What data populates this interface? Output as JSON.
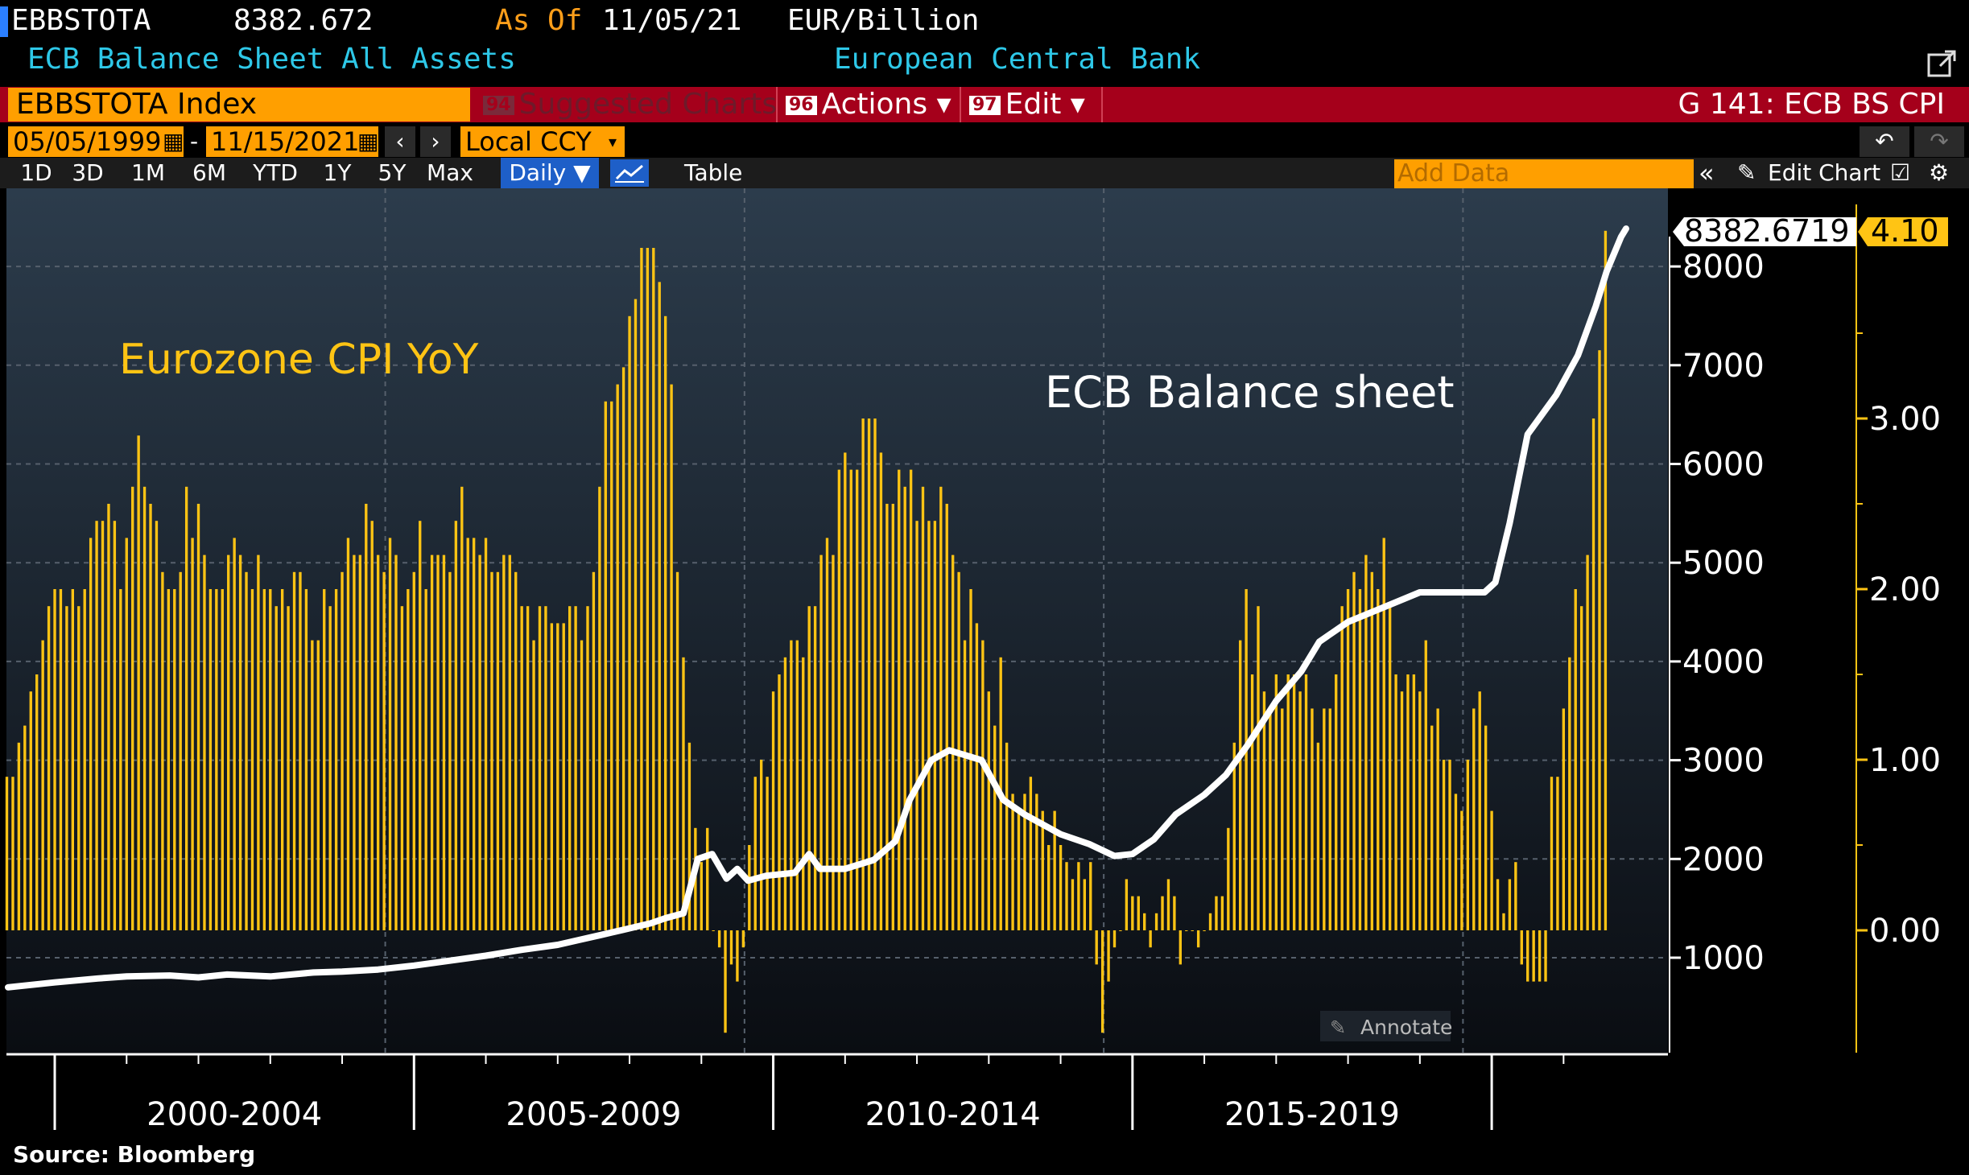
{
  "header": {
    "ticker": "EBBSTOTA",
    "last_value": "8382.672",
    "as_of_label": "As Of",
    "as_of_date": "11/05/21",
    "units": "EUR/Billion",
    "description": "ECB Balance Sheet All Assets",
    "source_name": "European Central Bank"
  },
  "command_bar": {
    "security": "EBBSTOTA Index",
    "suggested_num": "94",
    "suggested_label": "Suggested Charts",
    "actions_num": "96",
    "actions_label": "Actions ▾",
    "edit_num": "97",
    "edit_label": "Edit ▾",
    "chart_id": "G 141: ECB BS CPI"
  },
  "date_bar": {
    "start_date": "05/05/1999",
    "dash": "-",
    "end_date": "11/15/2021",
    "currency": "Local CCY"
  },
  "toolbar": {
    "ranges": [
      "1D",
      "3D",
      "1M",
      "6M",
      "YTD",
      "1Y",
      "5Y",
      "Max"
    ],
    "frequency": "Daily ▼",
    "table_label": "Table",
    "add_data_placeholder": "Add Data",
    "edit_chart_label": "Edit Chart"
  },
  "colors": {
    "bars": "#ffc414",
    "line": "#ffffff",
    "background_top": "#2c3c4c",
    "background_bottom": "#0a0d12",
    "amber": "#ff9f00",
    "red_bar": "#a5001b"
  },
  "chart_data": {
    "type": "bar",
    "x_range": [
      1999.35,
      2021.87
    ],
    "x_tick_labels": [
      "2000-2004",
      "2005-2009",
      "2010-2014",
      "2015-2019"
    ],
    "annotations": {
      "cpi_label": "Eurozone CPI YoY",
      "bs_label": "ECB Balance sheet",
      "annotate_button": "Annotate"
    },
    "footer": "Source: Bloomberg",
    "left_axis": {
      "ticks": [
        1000,
        2000,
        3000,
        4000,
        5000,
        6000,
        7000,
        8000
      ],
      "last_value_label": "8382.6719"
    },
    "right_axis": {
      "ticks": [
        0.0,
        1.0,
        2.0,
        3.0
      ],
      "last_value_label": "4.10"
    },
    "series": [
      {
        "name": "Eurozone CPI YoY",
        "type": "bar",
        "axis": "right",
        "start": "1999-05",
        "frequency": "monthly",
        "values": [
          0.9,
          0.9,
          1.1,
          1.2,
          1.4,
          1.5,
          1.7,
          1.9,
          2.0,
          2.0,
          1.9,
          2.0,
          1.9,
          2.0,
          2.3,
          2.4,
          2.4,
          2.5,
          2.4,
          2.0,
          2.3,
          2.6,
          2.9,
          2.6,
          2.5,
          2.4,
          2.1,
          2.0,
          2.0,
          2.1,
          2.6,
          2.3,
          2.5,
          2.2,
          2.0,
          2.0,
          2.0,
          2.2,
          2.3,
          2.2,
          2.1,
          2.0,
          2.2,
          2.0,
          2.0,
          1.9,
          2.0,
          1.9,
          2.1,
          2.1,
          2.0,
          1.7,
          1.7,
          2.0,
          1.9,
          2.0,
          2.1,
          2.3,
          2.2,
          2.2,
          2.5,
          2.4,
          2.2,
          2.1,
          2.3,
          2.2,
          1.9,
          2.0,
          2.1,
          2.4,
          2.0,
          2.2,
          2.2,
          2.2,
          2.1,
          2.4,
          2.6,
          2.3,
          2.3,
          2.2,
          2.3,
          2.1,
          2.1,
          2.2,
          2.2,
          2.1,
          1.9,
          1.9,
          1.7,
          1.9,
          1.9,
          1.8,
          1.8,
          1.8,
          1.9,
          1.9,
          1.7,
          1.9,
          2.1,
          2.6,
          3.1,
          3.1,
          3.2,
          3.3,
          3.6,
          3.7,
          4.0,
          4.0,
          4.0,
          3.8,
          3.6,
          3.2,
          2.1,
          1.6,
          1.1,
          0.6,
          0.4,
          0.6,
          0.0,
          -0.1,
          -0.6,
          -0.2,
          -0.3,
          -0.1,
          0.5,
          0.9,
          1.0,
          0.9,
          1.4,
          1.5,
          1.6,
          1.7,
          1.7,
          1.6,
          1.9,
          1.9,
          2.2,
          2.3,
          2.2,
          2.7,
          2.8,
          2.7,
          2.7,
          3.0,
          3.0,
          3.0,
          2.8,
          2.5,
          2.5,
          2.7,
          2.6,
          2.7,
          2.4,
          2.6,
          2.4,
          2.4,
          2.6,
          2.5,
          2.2,
          2.1,
          1.7,
          2.0,
          1.8,
          1.7,
          1.4,
          1.2,
          1.6,
          1.1,
          0.8,
          0.7,
          0.8,
          0.9,
          0.8,
          0.7,
          0.5,
          0.7,
          0.5,
          0.4,
          0.3,
          0.4,
          0.3,
          0.4,
          -0.2,
          -0.6,
          -0.3,
          -0.1,
          0.0,
          0.3,
          0.2,
          0.2,
          0.1,
          -0.1,
          0.1,
          0.2,
          0.3,
          0.2,
          -0.2,
          0.0,
          0.0,
          -0.1,
          0.0,
          0.1,
          0.2,
          0.2,
          0.6,
          1.1,
          1.7,
          2.0,
          1.5,
          1.9,
          1.4,
          1.3,
          1.5,
          1.3,
          1.5,
          1.5,
          1.4,
          1.5,
          1.3,
          1.1,
          1.3,
          1.3,
          1.5,
          1.9,
          2.0,
          2.1,
          2.0,
          2.2,
          2.1,
          2.0,
          2.3,
          1.9,
          1.5,
          1.4,
          1.5,
          1.5,
          1.4,
          1.7,
          1.2,
          1.3,
          1.0,
          1.0,
          0.8,
          0.7,
          1.0,
          1.3,
          1.4,
          1.2,
          0.7,
          0.3,
          0.1,
          0.3,
          0.4,
          -0.2,
          -0.3,
          -0.3,
          -0.3,
          -0.3,
          0.9,
          0.9,
          1.3,
          1.6,
          2.0,
          1.9,
          2.2,
          3.0,
          3.4,
          4.1
        ]
      },
      {
        "name": "ECB Balance sheet",
        "type": "line",
        "axis": "left",
        "points": [
          [
            1999.35,
            700
          ],
          [
            2000.0,
            750
          ],
          [
            2000.6,
            790
          ],
          [
            2001.0,
            810
          ],
          [
            2001.6,
            820
          ],
          [
            2002.0,
            800
          ],
          [
            2002.4,
            830
          ],
          [
            2003.0,
            810
          ],
          [
            2003.6,
            850
          ],
          [
            2004.0,
            860
          ],
          [
            2004.5,
            880
          ],
          [
            2005.0,
            920
          ],
          [
            2005.5,
            970
          ],
          [
            2006.0,
            1020
          ],
          [
            2006.5,
            1080
          ],
          [
            2007.0,
            1130
          ],
          [
            2007.3,
            1180
          ],
          [
            2007.6,
            1230
          ],
          [
            2007.9,
            1280
          ],
          [
            2008.3,
            1350
          ],
          [
            2008.5,
            1400
          ],
          [
            2008.75,
            1450
          ],
          [
            2008.95,
            2000
          ],
          [
            2009.15,
            2050
          ],
          [
            2009.35,
            1800
          ],
          [
            2009.5,
            1900
          ],
          [
            2009.65,
            1780
          ],
          [
            2009.9,
            1830
          ],
          [
            2010.3,
            1860
          ],
          [
            2010.5,
            2050
          ],
          [
            2010.65,
            1900
          ],
          [
            2011.0,
            1900
          ],
          [
            2011.4,
            1990
          ],
          [
            2011.7,
            2180
          ],
          [
            2011.9,
            2600
          ],
          [
            2012.2,
            3000
          ],
          [
            2012.45,
            3100
          ],
          [
            2012.9,
            3000
          ],
          [
            2013.2,
            2600
          ],
          [
            2013.5,
            2450
          ],
          [
            2014.0,
            2250
          ],
          [
            2014.4,
            2150
          ],
          [
            2014.75,
            2030
          ],
          [
            2015.0,
            2050
          ],
          [
            2015.3,
            2200
          ],
          [
            2015.6,
            2450
          ],
          [
            2016.0,
            2650
          ],
          [
            2016.3,
            2850
          ],
          [
            2016.6,
            3150
          ],
          [
            2017.0,
            3600
          ],
          [
            2017.35,
            3900
          ],
          [
            2017.6,
            4200
          ],
          [
            2018.0,
            4400
          ],
          [
            2018.5,
            4550
          ],
          [
            2019.0,
            4700
          ],
          [
            2019.5,
            4700
          ],
          [
            2019.9,
            4700
          ],
          [
            2020.05,
            4800
          ],
          [
            2020.25,
            5400
          ],
          [
            2020.5,
            6300
          ],
          [
            2020.9,
            6700
          ],
          [
            2021.2,
            7100
          ],
          [
            2021.45,
            7600
          ],
          [
            2021.6,
            7950
          ],
          [
            2021.8,
            8300
          ],
          [
            2021.87,
            8382.67
          ]
        ]
      }
    ]
  }
}
